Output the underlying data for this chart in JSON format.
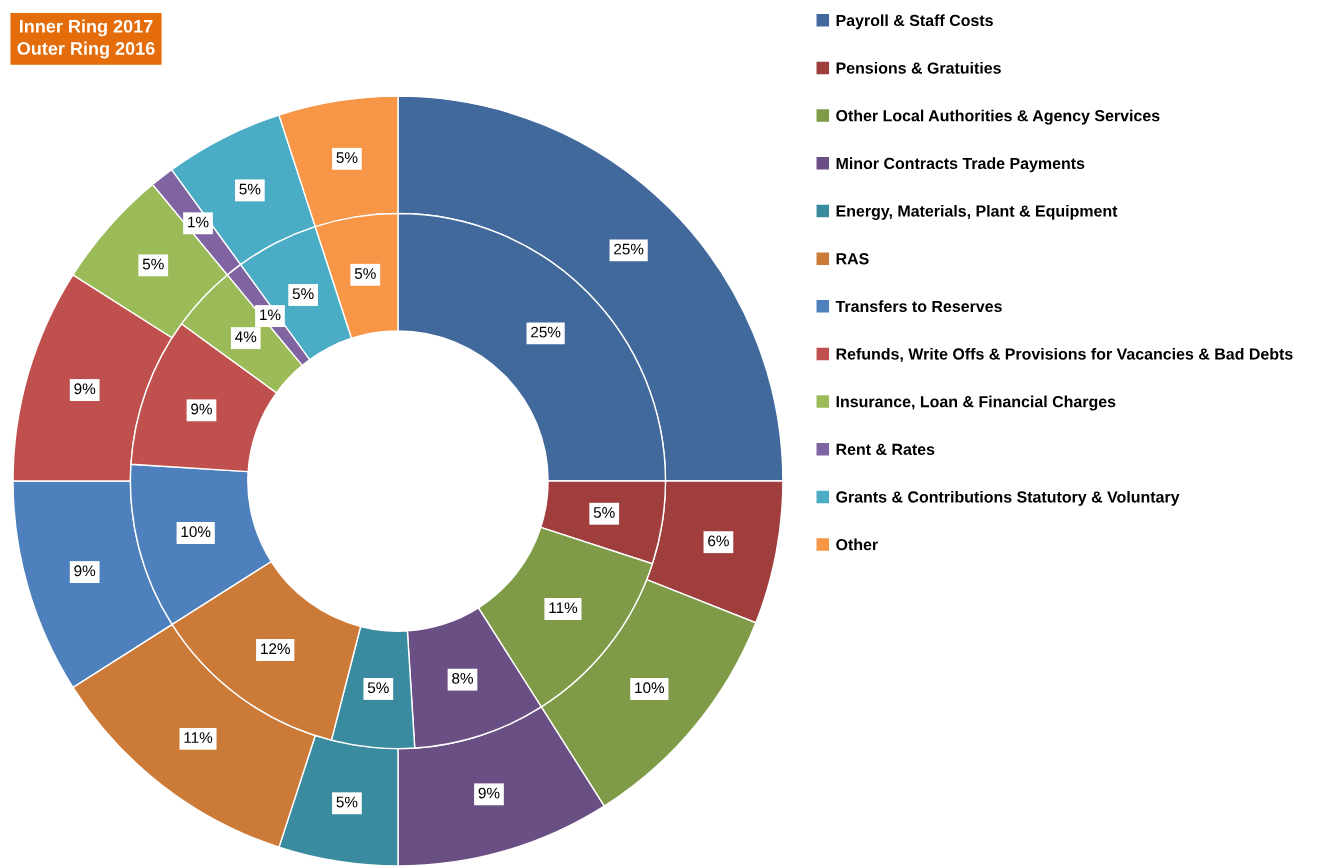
{
  "chart_data": {
    "type": "donut",
    "annotations": [
      "Inner Ring 2017",
      "Outer Ring 2016"
    ],
    "categories": [
      "Payroll & Staff Costs",
      "Pensions & Gratuities",
      "Other Local Authorities & Agency Services",
      "Minor Contracts Trade Payments",
      "Energy, Materials, Plant & Equipment",
      "RAS",
      "Transfers to Reserves",
      "Refunds, Write Offs & Provisions for Vacancies & Bad Debts",
      "Insurance, Loan & Financial Charges",
      "Rent & Rates",
      "Grants & Contributions Statutory & Voluntary",
      "Other"
    ],
    "colors": [
      "#41699c",
      "#a03d3d",
      "#7f9b48",
      "#6a4f85",
      "#3b8ba0",
      "#cc7a38",
      "#4e80bd",
      "#c0504d",
      "#9bbb59",
      "#8064a2",
      "#4bacc6",
      "#f79646"
    ],
    "series": [
      {
        "values": [
          25,
          6,
          10,
          9,
          5,
          11,
          9,
          9,
          5,
          1,
          5,
          5
        ],
        "value_labels": [
          "25%",
          "6%",
          "10%",
          "9%",
          "5%",
          "11%",
          "9%",
          "9%",
          "5%",
          "1%",
          "5%",
          "5%"
        ]
      },
      {
        "values": [
          25,
          5,
          11,
          8,
          5,
          12,
          10,
          9,
          4,
          1,
          5,
          5
        ],
        "value_labels": [
          "25%",
          "5%",
          "11%",
          "8%",
          "5%",
          "12%",
          "10%",
          "9%",
          "4%",
          "1%",
          "5%",
          "5%"
        ]
      }
    ],
    "legend": "right"
  }
}
